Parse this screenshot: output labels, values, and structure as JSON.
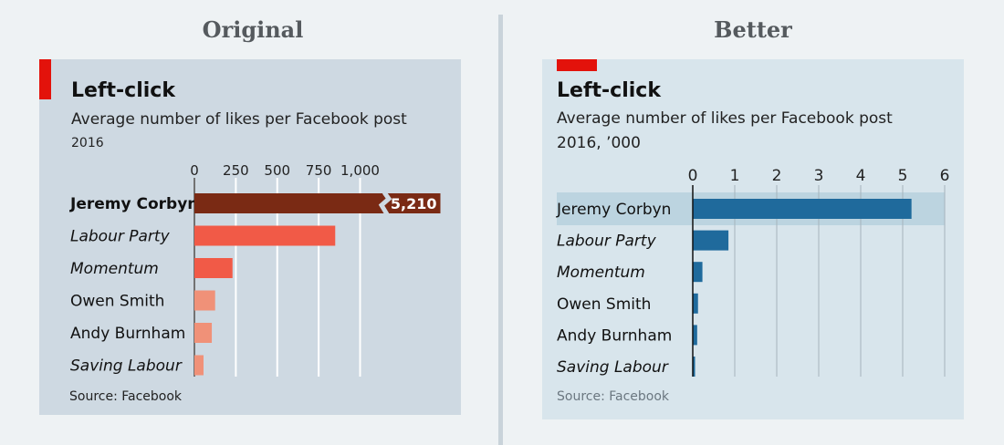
{
  "headings": {
    "left": "Original",
    "right": "Better"
  },
  "colors": {
    "background": "#eef2f4",
    "original_panel": "#ced9e2",
    "better_panel": "#d8e5ec",
    "brand_red": "#e3120b",
    "original_highlight_bar": "#7a2a14",
    "original_bar": "#f15a47",
    "original_light_bar": "#f09178",
    "better_bar": "#1f6a9c",
    "better_highlight_band": "#bcd4e0"
  },
  "chart_data": [
    {
      "type": "bar",
      "orientation": "horizontal",
      "title": "Left-click",
      "subtitle": "Average number of likes per Facebook post",
      "unit_label": "2016",
      "categories": [
        "Jeremy Corbyn",
        "Labour Party",
        "Momentum",
        "Owen Smith",
        "Andy Burnham",
        "Saving Labour"
      ],
      "italic_categories": [
        "Labour Party",
        "Momentum",
        "Saving Labour"
      ],
      "highlight": "Jeremy Corbyn",
      "values": [
        5210,
        850,
        230,
        125,
        105,
        55
      ],
      "tick_values": [
        0,
        250,
        500,
        750,
        1000
      ],
      "tick_labels": [
        "0",
        "250",
        "500",
        "750",
        "1,000"
      ],
      "xlim": [
        0,
        1000
      ],
      "axis_break": true,
      "data_labels": [
        {
          "category": "Jeremy Corbyn",
          "text": "5,210"
        }
      ],
      "grid": true,
      "source": "Source: Facebook"
    },
    {
      "type": "bar",
      "orientation": "horizontal",
      "title": "Left-click",
      "subtitle": "Average number of likes per Facebook post",
      "unit_label": "2016, ’000",
      "categories": [
        "Jeremy Corbyn",
        "Labour Party",
        "Momentum",
        "Owen Smith",
        "Andy Burnham",
        "Saving Labour"
      ],
      "italic_categories": [
        "Labour Party",
        "Momentum",
        "Saving Labour"
      ],
      "highlight": "Jeremy Corbyn",
      "values": [
        5.21,
        0.85,
        0.23,
        0.125,
        0.105,
        0.055
      ],
      "tick_values": [
        0,
        1,
        2,
        3,
        4,
        5,
        6
      ],
      "tick_labels": [
        "0",
        "1",
        "2",
        "3",
        "4",
        "5",
        "6"
      ],
      "xlim": [
        0,
        6
      ],
      "grid": true,
      "source": "Source: Facebook"
    }
  ]
}
